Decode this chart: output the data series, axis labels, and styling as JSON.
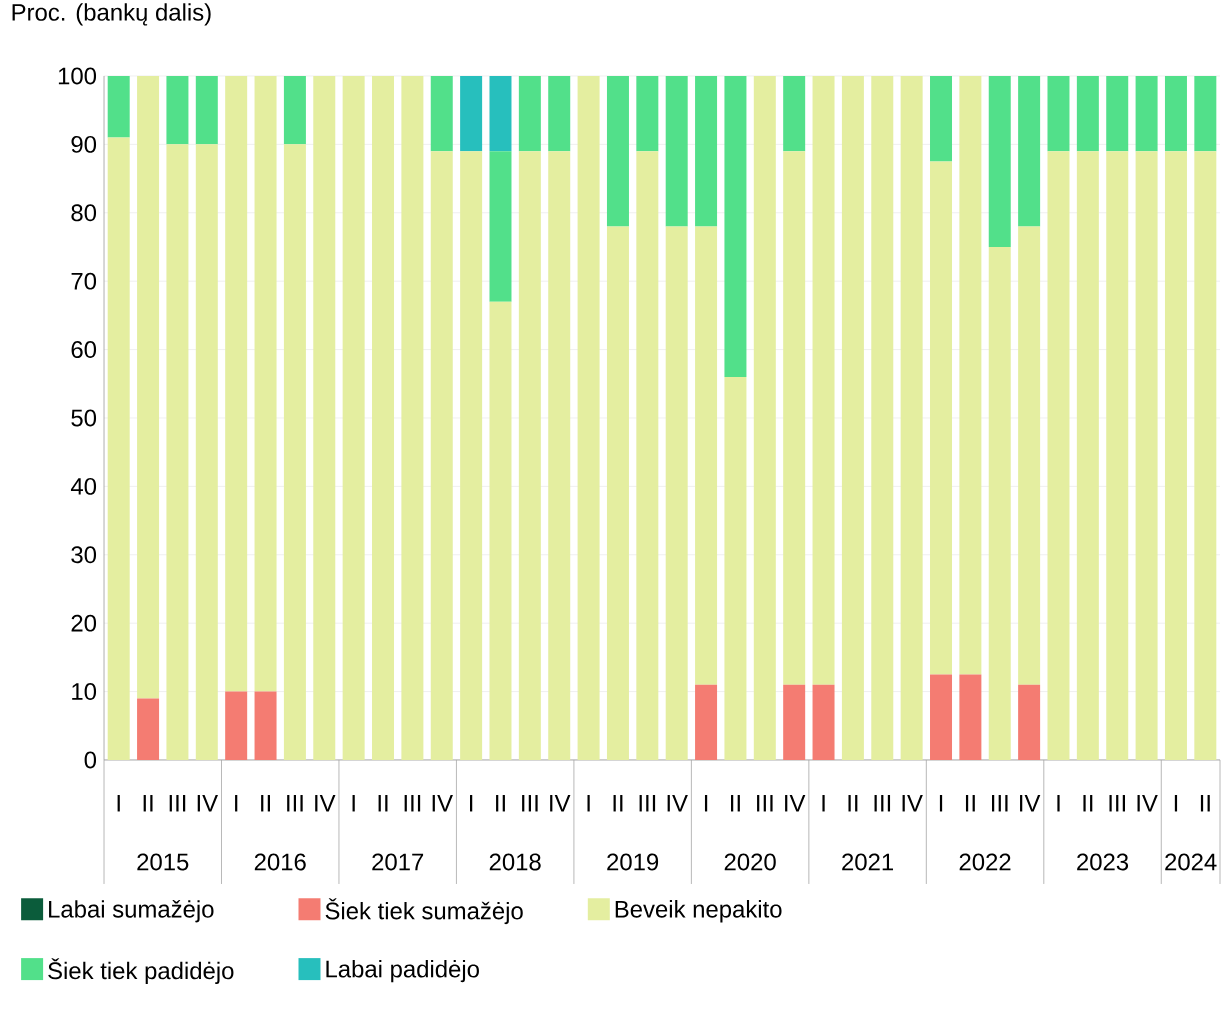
{
  "chart_data": {
    "type": "bar",
    "stacked": true,
    "ylabel": "Proc. (bankų dalis)",
    "categories": [
      "I",
      "II",
      "III",
      "IV",
      "I",
      "II",
      "III",
      "IV",
      "I",
      "II",
      "III",
      "IV",
      "I",
      "II",
      "III",
      "IV",
      "I",
      "II",
      "III",
      "IV",
      "I",
      "II",
      "III",
      "IV",
      "I",
      "II",
      "III",
      "IV",
      "I",
      "II",
      "III",
      "IV",
      "I",
      "II",
      "III",
      "IV",
      "I",
      "II"
    ],
    "annotations": [
      "2015",
      "2016",
      "2017",
      "2018",
      "2019",
      "2020",
      "2021",
      "2022",
      "2023",
      "2024"
    ],
    "ylim": [
      0,
      100
    ],
    "yticks": [
      0,
      10,
      20,
      30,
      40,
      50,
      60,
      70,
      80,
      90,
      100
    ],
    "grid": "y",
    "legend": "bottom",
    "series": [
      {
        "name": "Labai sumažėjo",
        "color": "#0b5c3b",
        "values": [
          0,
          0,
          0,
          0,
          0,
          0,
          0,
          0,
          0,
          0,
          0,
          0,
          0,
          0,
          0,
          0,
          0,
          0,
          0,
          0,
          0,
          0,
          0,
          0,
          0,
          0,
          0,
          0,
          0,
          0,
          0,
          0,
          0,
          0,
          0,
          0,
          0,
          0
        ]
      },
      {
        "name": "Šiek tiek sumažėjo",
        "color": "#f47c72",
        "values": [
          0,
          9,
          0,
          0,
          10,
          10,
          0,
          0,
          0,
          0,
          0,
          0,
          0,
          0,
          0,
          0,
          0,
          0,
          0,
          0,
          11,
          0,
          0,
          11,
          11,
          0,
          0,
          0,
          12.5,
          12.5,
          0,
          11,
          0,
          0,
          0,
          0,
          0,
          0
        ]
      },
      {
        "name": "Beveik nepakito",
        "color": "#e4eea0",
        "values": [
          91,
          91,
          90,
          90,
          90,
          90,
          90,
          100,
          100,
          100,
          100,
          89,
          89,
          67,
          89,
          89,
          100,
          78,
          89,
          78,
          67,
          56,
          100,
          78,
          89,
          100,
          100,
          100,
          75,
          87.5,
          75,
          67,
          89,
          89,
          89,
          89,
          89,
          89
        ]
      },
      {
        "name": "Šiek tiek padidėjo",
        "color": "#52e08a",
        "values": [
          9,
          0,
          10,
          10,
          0,
          0,
          10,
          0,
          0,
          0,
          0,
          11,
          0,
          22,
          11,
          11,
          0,
          22,
          11,
          22,
          22,
          44,
          0,
          11,
          0,
          0,
          0,
          0,
          12.5,
          0,
          25,
          22,
          11,
          11,
          11,
          11,
          11,
          11
        ]
      },
      {
        "name": "Labai padidėjo",
        "color": "#27bfbd",
        "values": [
          0,
          0,
          0,
          0,
          0,
          0,
          0,
          0,
          0,
          0,
          0,
          0,
          11,
          11,
          0,
          0,
          0,
          0,
          0,
          0,
          0,
          0,
          0,
          0,
          0,
          0,
          0,
          0,
          0,
          0,
          0,
          0,
          0,
          0,
          0,
          0,
          0,
          0
        ]
      }
    ]
  }
}
